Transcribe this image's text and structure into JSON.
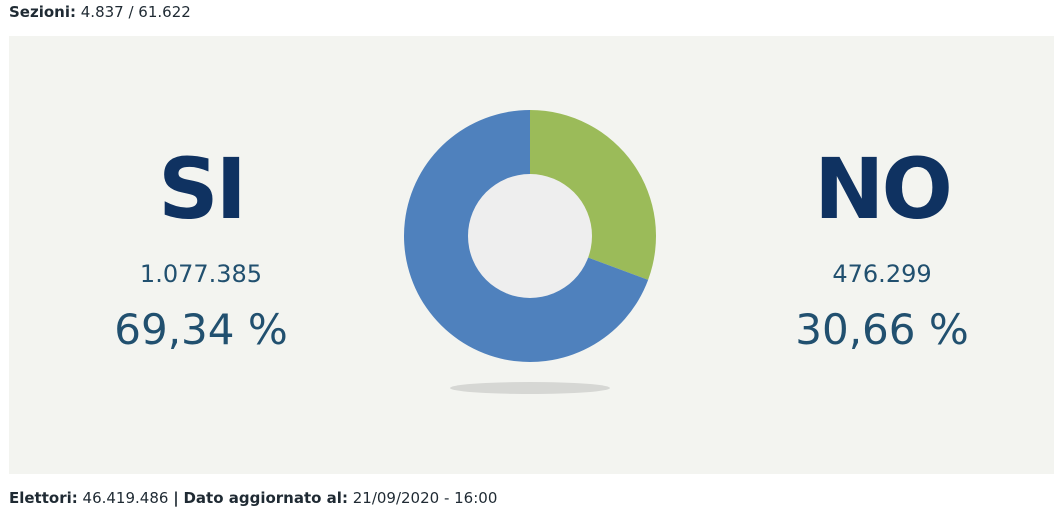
{
  "header": {
    "sections_label": "Sezioni:",
    "sections_value": "4.837 / 61.622"
  },
  "results": {
    "si": {
      "label": "SI",
      "votes": "1.077.385",
      "percent": "69,34 %"
    },
    "no": {
      "label": "NO",
      "votes": "476.299",
      "percent": "30,66 %"
    }
  },
  "footer": {
    "electors_label": "Elettori:",
    "electors_value": "46.419.486",
    "separator": "|",
    "updated_label": "Dato aggiornato al:",
    "updated_value": "21/09/2020 - 16:00"
  },
  "colors": {
    "si": "#4f81bd",
    "no": "#9bbb59",
    "hole": "#eeeeee",
    "shadow": "#d6d7d4"
  },
  "chart_data": {
    "type": "pie",
    "categories": [
      "SI",
      "NO"
    ],
    "values": [
      69.34,
      30.66
    ],
    "colors": [
      "#4f81bd",
      "#9bbb59"
    ],
    "donut": true
  }
}
